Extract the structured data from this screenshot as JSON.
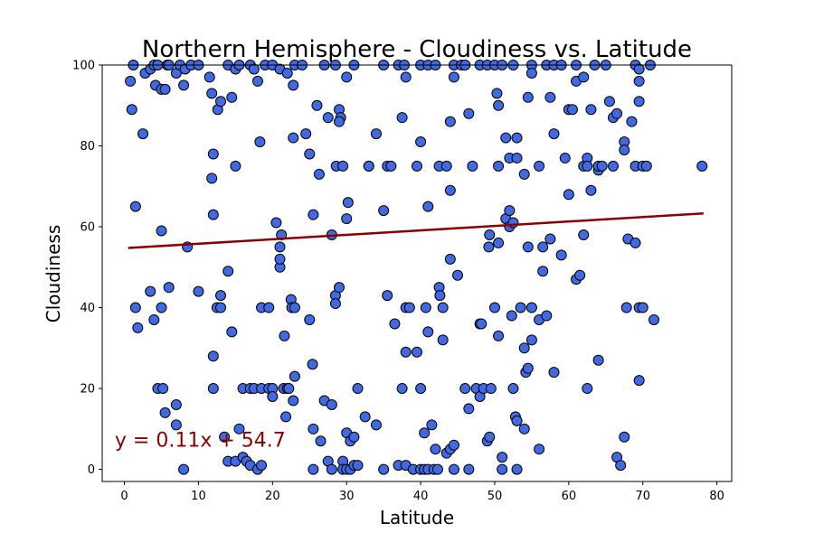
{
  "chart_data": {
    "type": "scatter",
    "title": "Northern Hemisphere - Cloudiness vs. Latitude",
    "xlabel": "Latitude",
    "ylabel": "Cloudiness",
    "xlim": [
      -3,
      82
    ],
    "ylim": [
      -3,
      100
    ],
    "xticks": [
      0,
      10,
      20,
      30,
      40,
      50,
      60,
      70,
      80
    ],
    "yticks": [
      0,
      20,
      40,
      60,
      80,
      100
    ],
    "grid": false,
    "point_color": "#4169e1",
    "point_edge_color": "#000000",
    "regression": {
      "equation": "y = 0.11x + 54.7",
      "slope": 0.11,
      "intercept": 54.7,
      "x_range": [
        0.5,
        78.2
      ],
      "color": "#8b0000"
    },
    "points": [
      [
        0.8,
        96
      ],
      [
        1.2,
        100
      ],
      [
        1.5,
        65
      ],
      [
        1,
        89
      ],
      [
        2.5,
        83
      ],
      [
        2.8,
        98
      ],
      [
        3.5,
        99
      ],
      [
        4,
        100
      ],
      [
        4.2,
        95
      ],
      [
        4.5,
        100
      ],
      [
        5,
        94
      ],
      [
        5.5,
        94
      ],
      [
        5.8,
        100
      ],
      [
        6,
        100
      ],
      [
        7,
        98
      ],
      [
        7.5,
        100
      ],
      [
        8,
        95
      ],
      [
        8.2,
        99
      ],
      [
        9,
        100
      ],
      [
        10,
        100
      ],
      [
        11.5,
        97
      ],
      [
        11.8,
        93
      ],
      [
        12,
        78
      ],
      [
        11.8,
        72
      ],
      [
        12,
        63
      ],
      [
        12.6,
        89
      ],
      [
        13,
        91
      ],
      [
        14,
        100
      ],
      [
        14.5,
        92
      ],
      [
        15,
        99
      ],
      [
        15,
        75
      ],
      [
        15.5,
        100
      ],
      [
        17,
        100
      ],
      [
        17.5,
        99
      ],
      [
        18,
        96
      ],
      [
        18.3,
        81
      ],
      [
        19,
        100
      ],
      [
        20,
        100
      ],
      [
        21,
        99
      ],
      [
        22,
        98
      ],
      [
        22.8,
        95
      ],
      [
        22.8,
        82
      ],
      [
        23,
        100
      ],
      [
        24,
        100
      ],
      [
        24.5,
        83
      ],
      [
        25,
        78
      ],
      [
        25.5,
        63
      ],
      [
        26,
        90
      ],
      [
        26.3,
        73
      ],
      [
        27,
        100
      ],
      [
        27.5,
        87
      ],
      [
        28.5,
        100
      ],
      [
        28.6,
        75
      ],
      [
        29,
        89
      ],
      [
        29.2,
        87
      ],
      [
        29,
        86
      ],
      [
        29.5,
        75
      ],
      [
        30,
        97
      ],
      [
        30,
        62
      ],
      [
        30.2,
        66
      ],
      [
        31,
        100
      ],
      [
        33,
        75
      ],
      [
        34,
        83
      ],
      [
        35,
        100
      ],
      [
        35.5,
        75
      ],
      [
        36,
        75
      ],
      [
        37,
        100
      ],
      [
        37.8,
        100
      ],
      [
        37.5,
        87
      ],
      [
        38,
        97
      ],
      [
        39.5,
        75
      ],
      [
        40,
        100
      ],
      [
        40,
        81
      ],
      [
        41,
        65
      ],
      [
        41,
        100
      ],
      [
        42,
        100
      ],
      [
        42.5,
        75
      ],
      [
        43.5,
        75
      ],
      [
        44,
        69
      ],
      [
        44,
        86
      ],
      [
        44.5,
        100
      ],
      [
        44.5,
        97
      ],
      [
        45.5,
        100
      ],
      [
        46.5,
        88
      ],
      [
        46,
        100
      ],
      [
        47,
        75
      ],
      [
        48,
        100
      ],
      [
        49,
        100
      ],
      [
        50,
        100
      ],
      [
        50.3,
        93
      ],
      [
        50.5,
        90
      ],
      [
        50.5,
        75
      ],
      [
        51,
        100
      ],
      [
        51.5,
        82
      ],
      [
        52,
        77
      ],
      [
        52.5,
        100
      ],
      [
        53,
        82
      ],
      [
        53,
        77
      ],
      [
        54,
        73
      ],
      [
        54.5,
        92
      ],
      [
        55,
        100
      ],
      [
        55,
        98
      ],
      [
        56,
        75
      ],
      [
        57,
        100
      ],
      [
        57.5,
        92
      ],
      [
        58,
        83
      ],
      [
        58,
        100
      ],
      [
        59,
        100
      ],
      [
        59.5,
        77
      ],
      [
        60,
        89
      ],
      [
        60.5,
        89
      ],
      [
        61,
        96
      ],
      [
        61,
        100
      ],
      [
        62,
        75
      ],
      [
        62,
        97
      ],
      [
        62.5,
        77
      ],
      [
        62.5,
        75
      ],
      [
        63,
        69
      ],
      [
        63,
        89
      ],
      [
        63.5,
        100
      ],
      [
        64,
        74
      ],
      [
        64,
        75
      ],
      [
        64.5,
        75
      ],
      [
        65,
        100
      ],
      [
        65.5,
        91
      ],
      [
        66,
        87
      ],
      [
        66,
        75
      ],
      [
        66.5,
        88
      ],
      [
        67.5,
        81
      ],
      [
        67.5,
        79
      ],
      [
        68.5,
        86
      ],
      [
        69,
        75
      ],
      [
        69,
        100
      ],
      [
        69.5,
        96
      ],
      [
        69.5,
        91
      ],
      [
        69.5,
        99
      ],
      [
        70,
        75
      ],
      [
        70.5,
        75
      ],
      [
        71,
        100
      ],
      [
        78,
        75
      ],
      [
        1.5,
        40
      ],
      [
        1.8,
        35
      ],
      [
        3.5,
        44
      ],
      [
        4,
        37
      ],
      [
        4.5,
        20
      ],
      [
        5,
        40
      ],
      [
        5,
        59
      ],
      [
        5.2,
        20
      ],
      [
        5.5,
        14
      ],
      [
        6,
        45
      ],
      [
        7,
        11
      ],
      [
        7,
        16
      ],
      [
        8,
        0
      ],
      [
        8.5,
        55
      ],
      [
        10,
        44
      ],
      [
        12,
        20
      ],
      [
        12,
        28
      ],
      [
        12.5,
        40
      ],
      [
        13,
        43
      ],
      [
        13,
        40
      ],
      [
        13.5,
        8
      ],
      [
        14,
        49
      ],
      [
        14,
        2
      ],
      [
        14.5,
        34
      ],
      [
        15,
        2
      ],
      [
        15.5,
        10
      ],
      [
        16,
        20
      ],
      [
        16,
        3
      ],
      [
        16.5,
        2
      ],
      [
        17,
        20
      ],
      [
        17,
        1
      ],
      [
        17.5,
        20
      ],
      [
        18,
        0
      ],
      [
        18.5,
        20
      ],
      [
        18.5,
        40
      ],
      [
        18.5,
        1
      ],
      [
        19.5,
        40
      ],
      [
        19.5,
        20
      ],
      [
        20,
        20
      ],
      [
        20,
        18
      ],
      [
        20.5,
        61
      ],
      [
        21,
        50
      ],
      [
        21,
        52
      ],
      [
        21,
        55
      ],
      [
        21.2,
        58
      ],
      [
        21.5,
        20
      ],
      [
        21.6,
        33
      ],
      [
        21.8,
        13
      ],
      [
        22,
        20
      ],
      [
        22.2,
        20
      ],
      [
        22.5,
        42
      ],
      [
        22.6,
        40
      ],
      [
        22.8,
        17
      ],
      [
        23,
        40
      ],
      [
        23,
        23
      ],
      [
        25,
        37
      ],
      [
        25.4,
        26
      ],
      [
        25.5,
        10
      ],
      [
        25.5,
        0
      ],
      [
        26.5,
        7
      ],
      [
        27,
        17
      ],
      [
        27.5,
        2
      ],
      [
        28,
        58
      ],
      [
        28,
        16
      ],
      [
        28,
        0
      ],
      [
        28.5,
        43
      ],
      [
        28.5,
        41
      ],
      [
        29,
        45
      ],
      [
        29.5,
        2
      ],
      [
        29.5,
        0
      ],
      [
        30,
        0
      ],
      [
        30,
        9
      ],
      [
        30.5,
        0
      ],
      [
        30.5,
        7
      ],
      [
        31,
        8
      ],
      [
        31,
        1
      ],
      [
        31.5,
        1
      ],
      [
        31.5,
        20
      ],
      [
        32.5,
        13
      ],
      [
        33,
        75
      ],
      [
        34,
        11
      ],
      [
        35,
        0
      ],
      [
        35,
        64
      ],
      [
        35.5,
        43
      ],
      [
        36.5,
        36
      ],
      [
        37,
        1
      ],
      [
        37.5,
        20
      ],
      [
        38,
        40
      ],
      [
        38,
        29
      ],
      [
        38,
        1
      ],
      [
        38.5,
        40
      ],
      [
        39,
        0
      ],
      [
        39.5,
        29
      ],
      [
        40,
        0
      ],
      [
        40,
        20
      ],
      [
        40.5,
        0
      ],
      [
        40.5,
        9
      ],
      [
        40.7,
        40
      ],
      [
        41,
        34
      ],
      [
        41,
        0
      ],
      [
        41.5,
        11
      ],
      [
        41.8,
        0
      ],
      [
        42,
        5
      ],
      [
        42.3,
        0
      ],
      [
        42.5,
        45
      ],
      [
        42.6,
        43
      ],
      [
        43,
        40
      ],
      [
        43,
        32
      ],
      [
        43.5,
        4
      ],
      [
        44,
        52
      ],
      [
        44,
        5
      ],
      [
        44.5,
        6
      ],
      [
        44.5,
        0
      ],
      [
        45,
        48
      ],
      [
        46,
        20
      ],
      [
        46.5,
        15
      ],
      [
        46.5,
        0
      ],
      [
        47.5,
        20
      ],
      [
        48,
        18
      ],
      [
        48,
        36
      ],
      [
        48.2,
        36
      ],
      [
        48.5,
        20
      ],
      [
        49,
        7
      ],
      [
        49.2,
        55
      ],
      [
        49.3,
        58
      ],
      [
        49.3,
        8
      ],
      [
        49.5,
        20
      ],
      [
        50,
        40
      ],
      [
        50.5,
        56
      ],
      [
        50.5,
        33
      ],
      [
        51,
        0
      ],
      [
        51,
        3
      ],
      [
        51.5,
        62
      ],
      [
        52,
        64
      ],
      [
        52,
        60
      ],
      [
        52.3,
        38
      ],
      [
        52.5,
        61
      ],
      [
        52.5,
        20
      ],
      [
        52.8,
        13
      ],
      [
        53,
        12
      ],
      [
        53,
        0
      ],
      [
        53.5,
        40
      ],
      [
        54,
        30
      ],
      [
        54,
        10
      ],
      [
        54.2,
        24
      ],
      [
        54.5,
        55
      ],
      [
        54.5,
        25
      ],
      [
        55,
        40
      ],
      [
        55,
        32
      ],
      [
        56,
        5
      ],
      [
        56,
        37
      ],
      [
        56.5,
        55
      ],
      [
        56.5,
        49
      ],
      [
        57,
        38
      ],
      [
        57.5,
        57
      ],
      [
        58,
        24
      ],
      [
        59,
        53
      ],
      [
        60,
        68
      ],
      [
        61,
        47
      ],
      [
        61.5,
        48
      ],
      [
        62,
        58
      ],
      [
        62.5,
        20
      ],
      [
        64,
        27
      ],
      [
        66.5,
        3
      ],
      [
        67,
        1
      ],
      [
        67.5,
        8
      ],
      [
        67.8,
        40
      ],
      [
        68,
        57
      ],
      [
        69,
        56
      ],
      [
        69.5,
        22
      ],
      [
        69.5,
        40
      ],
      [
        70,
        40
      ],
      [
        71.5,
        37
      ]
    ]
  }
}
